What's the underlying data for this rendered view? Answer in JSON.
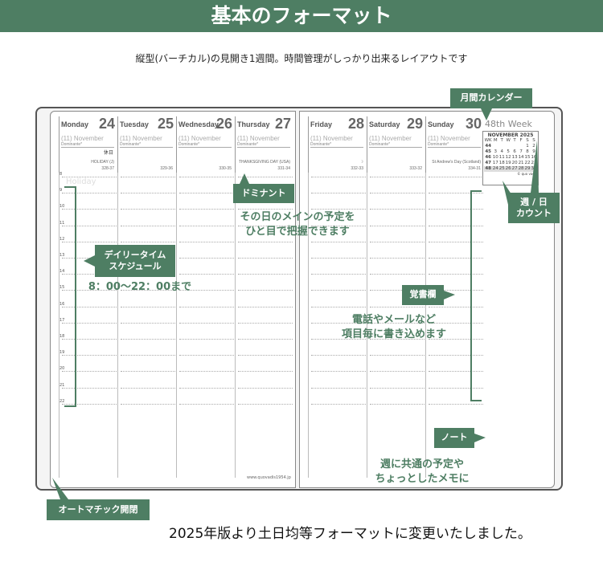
{
  "header": {
    "title": "基本のフォーマット"
  },
  "subtitle": "縦型(バーチカル)の見開き1週間。時間管理がしっかり出来るレイアウトです",
  "colors": {
    "accent": "#4e7e63"
  },
  "days": [
    {
      "name": "Monday",
      "num": "24",
      "month": "(11) November",
      "dominante": "Dominante*",
      "note": "HOLIDAY (J)",
      "count": "328-37",
      "holiday": "休日"
    },
    {
      "name": "Tuesday",
      "num": "25",
      "month": "(11) November",
      "dominante": "Dominante*",
      "note": "",
      "count": "329-36"
    },
    {
      "name": "Wednesday",
      "num": "26",
      "month": "(11) November",
      "dominante": "Dominante*",
      "note": "",
      "count": "330-35"
    },
    {
      "name": "Thursday",
      "num": "27",
      "month": "(11) November",
      "dominante": "Dominante*",
      "note": "THANKSGIVING DAY (USA)",
      "count": "331-34"
    },
    {
      "name": "Friday",
      "num": "28",
      "month": "(11) November",
      "dominante": "Dominante*",
      "note": "☽",
      "count": "332-33"
    },
    {
      "name": "Saturday",
      "num": "29",
      "month": "(11) November",
      "dominante": "Dominante*",
      "note": "",
      "count": "333-32"
    },
    {
      "name": "Sunday",
      "num": "30",
      "month": "(11) November",
      "dominante": "Dominante*",
      "note": "St Andrew's Day (Scotland)",
      "count": "334-31"
    }
  ],
  "hours": [
    "8",
    "9",
    "10",
    "11",
    "12",
    "13",
    "14",
    "15",
    "16",
    "17",
    "18",
    "19",
    "20",
    "21",
    "22"
  ],
  "holiday_watermark": "Holiday",
  "week_label": "48th Week",
  "calendar": {
    "title": "NOVEMBER 2025",
    "headers": [
      "WK",
      "M",
      "T",
      "W",
      "T",
      "F",
      "S",
      "S"
    ],
    "rows": [
      [
        "44",
        "",
        "",
        "",
        "",
        "",
        "1",
        "2"
      ],
      [
        "45",
        "3",
        "4",
        "5",
        "6",
        "7",
        "8",
        "9"
      ],
      [
        "46",
        "10",
        "11",
        "12",
        "13",
        "14",
        "15",
        "16"
      ],
      [
        "47",
        "17",
        "18",
        "19",
        "20",
        "21",
        "22",
        "23"
      ],
      [
        "48",
        "24",
        "25",
        "26",
        "27",
        "28",
        "29",
        "30"
      ]
    ],
    "brand": "© quo vadis"
  },
  "footer_url": "www.quovadis1954.jp",
  "callouts": {
    "monthly": "月間カレンダー",
    "dominant": "ドミナント",
    "dominant_desc": "その日のメインの予定を\nひと目で把握できます",
    "daily": "デイリータイム\nスケジュール",
    "daily_range": "8：00〜22：00まで",
    "weekday_count": "週 / 日\nカウント",
    "memo": "覚書欄",
    "memo_desc": "電話やメールなど\n項目毎に書き込めます",
    "note": "ノート",
    "note_desc": "週に共通の予定や\nちょっとしたメモに",
    "auto": "オートマチック開閉"
  },
  "bottom_note": "2025年版より土日均等フォーマットに変更いたしました。"
}
